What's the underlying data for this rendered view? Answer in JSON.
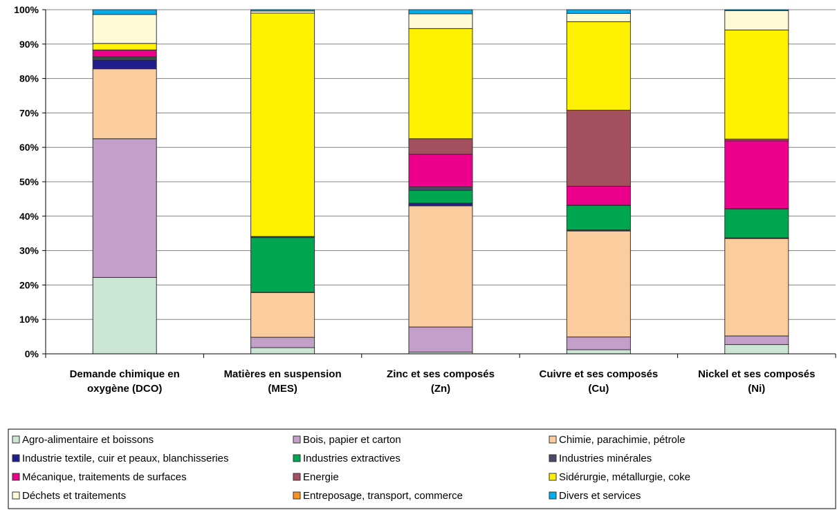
{
  "chart_data": {
    "type": "bar",
    "stacked": true,
    "percent": true,
    "categories": [
      [
        "Demande chimique en",
        "oxygène (DCO)"
      ],
      [
        "Matières en suspension",
        "(MES)"
      ],
      [
        "Zinc et ses composés",
        "(Zn)"
      ],
      [
        "Cuivre et ses composés",
        "(Cu)"
      ],
      [
        "Nickel et ses composés",
        "(Ni)"
      ]
    ],
    "ylim": [
      0,
      100
    ],
    "yticks": [
      "0%",
      "10%",
      "20%",
      "30%",
      "40%",
      "50%",
      "60%",
      "70%",
      "80%",
      "90%",
      "100%"
    ],
    "grid": true,
    "legend_position": "bottom",
    "series": [
      {
        "name": "Agro-alimentaire et boissons",
        "color": "#cce6d6",
        "values": [
          22.2,
          1.8,
          0.5,
          1.2,
          2.7
        ]
      },
      {
        "name": "Bois, papier et carton",
        "color": "#c49fca",
        "values": [
          40.3,
          3.0,
          7.3,
          3.7,
          2.5
        ]
      },
      {
        "name": "Chimie, parachimie, pétrole",
        "color": "#fbcc9e",
        "values": [
          20.3,
          13.0,
          35.2,
          30.8,
          28.3
        ]
      },
      {
        "name": "Industrie textile, cuir et peaux, blanchisseries",
        "color": "#1f1e8c",
        "values": [
          2.7,
          0.1,
          0.8,
          0.3,
          0.2
        ]
      },
      {
        "name": "Industries extractives",
        "color": "#00a650",
        "values": [
          0.4,
          15.9,
          3.7,
          7.1,
          8.4
        ]
      },
      {
        "name": "Industries minérales",
        "color": "#4c4868",
        "values": [
          0.4,
          0.2,
          1.0,
          0.1,
          0.1
        ]
      },
      {
        "name": "Mécanique, traitements de surfaces",
        "color": "#ec008c",
        "values": [
          2.0,
          0.1,
          9.5,
          5.5,
          19.7
        ]
      },
      {
        "name": "Energie",
        "color": "#a4505e",
        "values": [
          0.0,
          0.0,
          4.5,
          22.1,
          0.5
        ]
      },
      {
        "name": "Sidérurgie, métallurgie, coke",
        "color": "#fff200",
        "values": [
          1.9,
          64.9,
          32.0,
          25.7,
          31.7
        ]
      },
      {
        "name": "Déchets et traitements",
        "color": "#fff9d6",
        "values": [
          8.4,
          0.6,
          4.3,
          2.4,
          5.6
        ]
      },
      {
        "name": "Entreposage, transport, commerce",
        "color": "#f7941d",
        "values": [
          0.0,
          0.0,
          0.0,
          0.0,
          0.0
        ]
      },
      {
        "name": "Divers et services",
        "color": "#00aeef",
        "values": [
          1.4,
          0.4,
          1.2,
          1.1,
          0.3
        ]
      }
    ]
  }
}
